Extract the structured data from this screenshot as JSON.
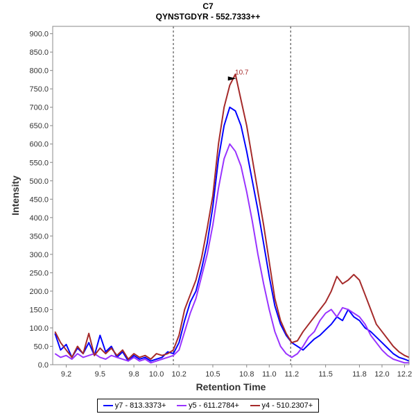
{
  "chart_data": {
    "type": "line",
    "title": "C7",
    "subtitle": "QYNSTGDYR - 552.7333++",
    "xlabel": "Retention Time",
    "ylabel": "Intensity",
    "xlim": [
      9.08,
      12.24
    ],
    "ylim": [
      0,
      920
    ],
    "x_ticks": [
      "9.2",
      "9.5",
      "9.8",
      "10.0",
      "10.2",
      "10.5",
      "10.8",
      "11.0",
      "11.2",
      "11.5",
      "11.8",
      "12.0",
      "12.2"
    ],
    "x_tick_values": [
      9.2,
      9.5,
      9.8,
      10.0,
      10.2,
      10.5,
      10.8,
      11.0,
      11.2,
      11.5,
      11.8,
      12.0,
      12.2
    ],
    "y_ticks": [
      "0.0",
      "50.0",
      "100.0",
      "150.0",
      "200.0",
      "250.0",
      "300.0",
      "350.0",
      "400.0",
      "450.0",
      "500.0",
      "550.0",
      "600.0",
      "650.0",
      "700.0",
      "750.0",
      "800.0",
      "850.0",
      "900.0"
    ],
    "y_tick_values": [
      0,
      50,
      100,
      150,
      200,
      250,
      300,
      350,
      400,
      450,
      500,
      550,
      600,
      650,
      700,
      750,
      800,
      850,
      900
    ],
    "vlines": [
      10.15,
      11.19
    ],
    "annotation": {
      "text": "10.7",
      "x": 10.72,
      "y": 795,
      "color": "#a52a2a"
    },
    "legend_position": "bottom",
    "series": [
      {
        "name": "y7 - 813.3373+",
        "color": "#0000ff",
        "x": [
          9.1,
          9.15,
          9.2,
          9.25,
          9.3,
          9.35,
          9.4,
          9.45,
          9.5,
          9.55,
          9.6,
          9.65,
          9.7,
          9.75,
          9.8,
          9.85,
          9.9,
          9.95,
          10.0,
          10.05,
          10.1,
          10.15,
          10.2,
          10.25,
          10.3,
          10.35,
          10.4,
          10.45,
          10.5,
          10.55,
          10.6,
          10.65,
          10.7,
          10.75,
          10.8,
          10.85,
          10.9,
          10.95,
          11.0,
          11.05,
          11.1,
          11.15,
          11.2,
          11.25,
          11.3,
          11.35,
          11.4,
          11.45,
          11.5,
          11.55,
          11.6,
          11.65,
          11.7,
          11.75,
          11.8,
          11.85,
          11.9,
          11.95,
          12.0,
          12.05,
          12.1,
          12.15,
          12.2,
          12.24
        ],
        "y": [
          85,
          40,
          55,
          20,
          45,
          30,
          60,
          25,
          80,
          35,
          50,
          20,
          35,
          10,
          25,
          15,
          20,
          10,
          15,
          20,
          35,
          30,
          60,
          120,
          170,
          200,
          260,
          330,
          430,
          560,
          650,
          700,
          690,
          650,
          580,
          500,
          420,
          330,
          240,
          160,
          110,
          80,
          60,
          50,
          40,
          55,
          70,
          80,
          95,
          110,
          130,
          120,
          150,
          130,
          120,
          100,
          90,
          75,
          60,
          45,
          30,
          20,
          15,
          10
        ]
      },
      {
        "name": "y5 - 611.2784+",
        "color": "#9933ff",
        "x": [
          9.1,
          9.15,
          9.2,
          9.25,
          9.3,
          9.35,
          9.4,
          9.45,
          9.5,
          9.55,
          9.6,
          9.65,
          9.7,
          9.75,
          9.8,
          9.85,
          9.9,
          9.95,
          10.0,
          10.05,
          10.1,
          10.15,
          10.2,
          10.25,
          10.3,
          10.35,
          10.4,
          10.45,
          10.5,
          10.55,
          10.6,
          10.65,
          10.7,
          10.75,
          10.8,
          10.85,
          10.9,
          10.95,
          11.0,
          11.05,
          11.1,
          11.15,
          11.2,
          11.25,
          11.3,
          11.35,
          11.4,
          11.45,
          11.5,
          11.55,
          11.6,
          11.65,
          11.7,
          11.75,
          11.8,
          11.85,
          11.9,
          11.95,
          12.0,
          12.05,
          12.1,
          12.15,
          12.2,
          12.24
        ],
        "y": [
          30,
          20,
          25,
          15,
          30,
          20,
          25,
          30,
          20,
          15,
          25,
          20,
          15,
          10,
          20,
          10,
          15,
          5,
          10,
          15,
          20,
          25,
          40,
          90,
          140,
          180,
          240,
          300,
          380,
          480,
          560,
          600,
          580,
          540,
          470,
          390,
          300,
          220,
          150,
          90,
          50,
          30,
          20,
          30,
          50,
          75,
          90,
          120,
          140,
          150,
          130,
          155,
          150,
          140,
          130,
          110,
          80,
          60,
          40,
          25,
          15,
          10,
          5,
          5
        ]
      },
      {
        "name": "y4 - 510.2307+",
        "color": "#a52a2a",
        "x": [
          9.1,
          9.15,
          9.2,
          9.25,
          9.3,
          9.35,
          9.4,
          9.45,
          9.5,
          9.55,
          9.6,
          9.65,
          9.7,
          9.75,
          9.8,
          9.85,
          9.9,
          9.95,
          10.0,
          10.05,
          10.1,
          10.15,
          10.2,
          10.25,
          10.3,
          10.35,
          10.4,
          10.45,
          10.5,
          10.55,
          10.6,
          10.65,
          10.7,
          10.75,
          10.8,
          10.85,
          10.9,
          10.95,
          11.0,
          11.05,
          11.1,
          11.15,
          11.2,
          11.25,
          11.3,
          11.35,
          11.4,
          11.45,
          11.5,
          11.55,
          11.6,
          11.65,
          11.7,
          11.75,
          11.8,
          11.85,
          11.9,
          11.95,
          12.0,
          12.05,
          12.1,
          12.15,
          12.2,
          12.24
        ],
        "y": [
          90,
          60,
          40,
          20,
          50,
          30,
          85,
          25,
          45,
          30,
          45,
          25,
          40,
          15,
          30,
          20,
          25,
          15,
          30,
          25,
          30,
          40,
          80,
          150,
          190,
          230,
          290,
          370,
          460,
          600,
          700,
          760,
          790,
          720,
          650,
          560,
          470,
          380,
          280,
          180,
          120,
          85,
          60,
          65,
          90,
          110,
          130,
          150,
          170,
          200,
          240,
          220,
          230,
          245,
          230,
          190,
          150,
          110,
          90,
          70,
          50,
          35,
          25,
          20
        ]
      }
    ]
  }
}
